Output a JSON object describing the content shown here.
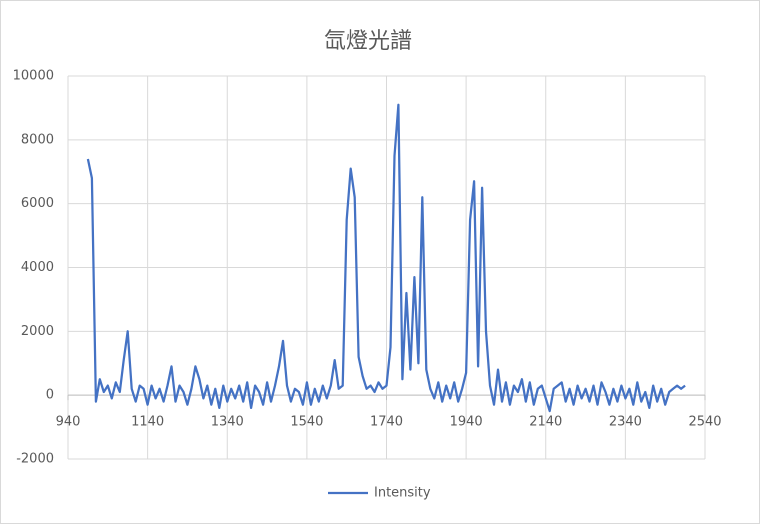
{
  "chart_data": {
    "type": "line",
    "title": "氙燈光譜",
    "x": [
      990,
      1000,
      1010,
      1020,
      1030,
      1040,
      1050,
      1060,
      1070,
      1080,
      1090,
      1100,
      1110,
      1120,
      1130,
      1140,
      1150,
      1160,
      1170,
      1180,
      1190,
      1200,
      1210,
      1220,
      1230,
      1240,
      1250,
      1260,
      1270,
      1280,
      1290,
      1300,
      1310,
      1320,
      1330,
      1340,
      1350,
      1360,
      1370,
      1380,
      1390,
      1400,
      1410,
      1420,
      1430,
      1440,
      1450,
      1460,
      1470,
      1480,
      1490,
      1500,
      1510,
      1520,
      1530,
      1540,
      1550,
      1560,
      1570,
      1580,
      1590,
      1600,
      1610,
      1620,
      1630,
      1640,
      1650,
      1660,
      1670,
      1680,
      1690,
      1700,
      1710,
      1720,
      1730,
      1740,
      1750,
      1760,
      1770,
      1780,
      1790,
      1800,
      1810,
      1820,
      1830,
      1840,
      1850,
      1860,
      1870,
      1880,
      1890,
      1900,
      1910,
      1920,
      1930,
      1940,
      1950,
      1960,
      1970,
      1980,
      1990,
      2000,
      2010,
      2020,
      2030,
      2040,
      2050,
      2060,
      2070,
      2080,
      2090,
      2100,
      2110,
      2120,
      2130,
      2140,
      2150,
      2160,
      2170,
      2180,
      2190,
      2200,
      2210,
      2220,
      2230,
      2240,
      2250,
      2260,
      2270,
      2280,
      2290,
      2300,
      2310,
      2320,
      2330,
      2340,
      2350,
      2360,
      2370,
      2380,
      2390,
      2400,
      2410,
      2420,
      2430,
      2440,
      2450,
      2460,
      2470,
      2480,
      2490
    ],
    "series": [
      {
        "name": "Intensity",
        "color": "#4472c4",
        "values": [
          7400,
          6800,
          -200,
          500,
          100,
          300,
          -100,
          400,
          100,
          1100,
          2000,
          200,
          -200,
          300,
          200,
          -300,
          300,
          -100,
          200,
          -200,
          300,
          900,
          -200,
          300,
          100,
          -300,
          200,
          900,
          500,
          -100,
          300,
          -300,
          200,
          -400,
          300,
          -200,
          200,
          -100,
          300,
          -200,
          400,
          -400,
          300,
          100,
          -300,
          400,
          -200,
          300,
          900,
          1700,
          300,
          -200,
          200,
          100,
          -300,
          400,
          -300,
          200,
          -200,
          300,
          -100,
          300,
          1100,
          200,
          300,
          5500,
          7100,
          6200,
          1200,
          600,
          200,
          300,
          100,
          400,
          200,
          300,
          1500,
          7500,
          9100,
          500,
          3200,
          800,
          3700,
          1000,
          6200,
          800,
          200,
          -100,
          400,
          -200,
          300,
          -100,
          400,
          -200,
          200,
          700,
          5500,
          6700,
          900,
          6500,
          2000,
          300,
          -300,
          800,
          -200,
          400,
          -300,
          300,
          100,
          500,
          -200,
          400,
          -300,
          200,
          300,
          -100,
          -500,
          200,
          300,
          400,
          -200,
          200,
          -300,
          300,
          -100,
          200,
          -200,
          300,
          -300,
          400,
          100,
          -300,
          200,
          -200,
          300,
          -100,
          200,
          -300,
          400,
          -200,
          100,
          -400,
          300,
          -200,
          200,
          -300,
          100,
          200,
          300,
          200,
          300
        ]
      }
    ],
    "xlim": [
      940,
      2540
    ],
    "xticks": [
      940,
      1140,
      1340,
      1540,
      1740,
      1940,
      2140,
      2340,
      2540
    ],
    "ylim": [
      -2000,
      10000
    ],
    "yticks": [
      -2000,
      0,
      2000,
      4000,
      6000,
      8000,
      10000
    ],
    "grid": true,
    "legend": "bottom"
  }
}
